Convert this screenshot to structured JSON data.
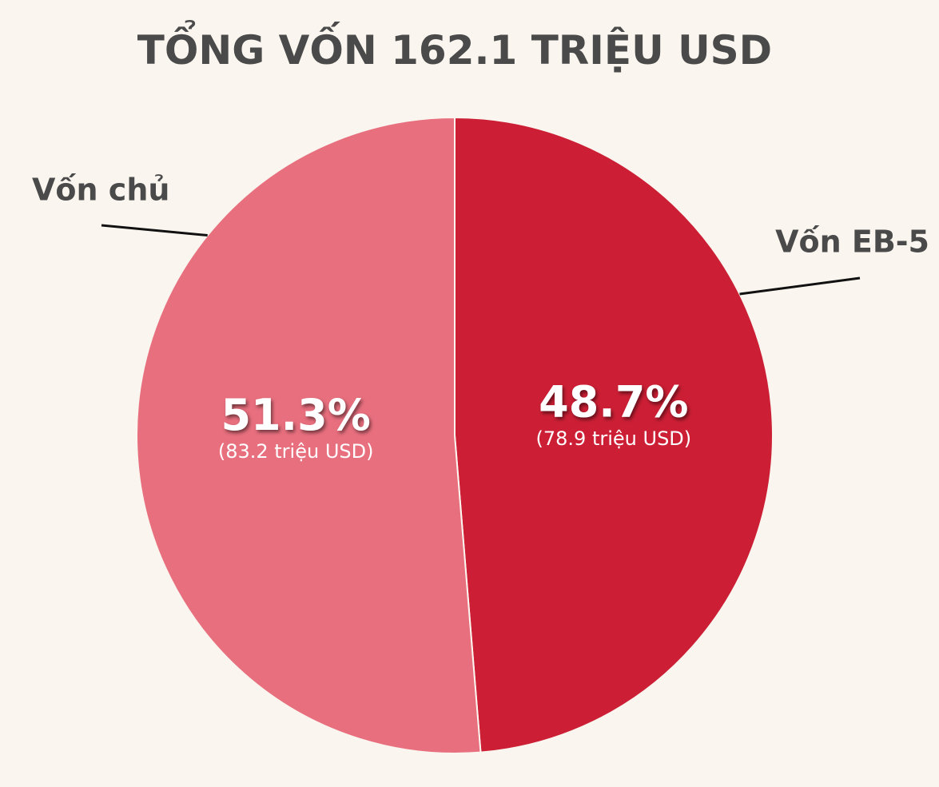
{
  "chart_data": {
    "type": "pie",
    "title": "TỔNG VỐN 162.1 TRIỆU USD",
    "categories": [
      "Vốn EB-5",
      "Vốn chủ"
    ],
    "values": [
      48.7,
      51.3
    ],
    "value_labels": [
      "48.7%",
      "51.3%"
    ],
    "sub_labels": [
      "(78.9 triệu USD)",
      "(83.2 triệu USD)"
    ],
    "colors": [
      "#cc1f35",
      "#e86f7e"
    ]
  }
}
